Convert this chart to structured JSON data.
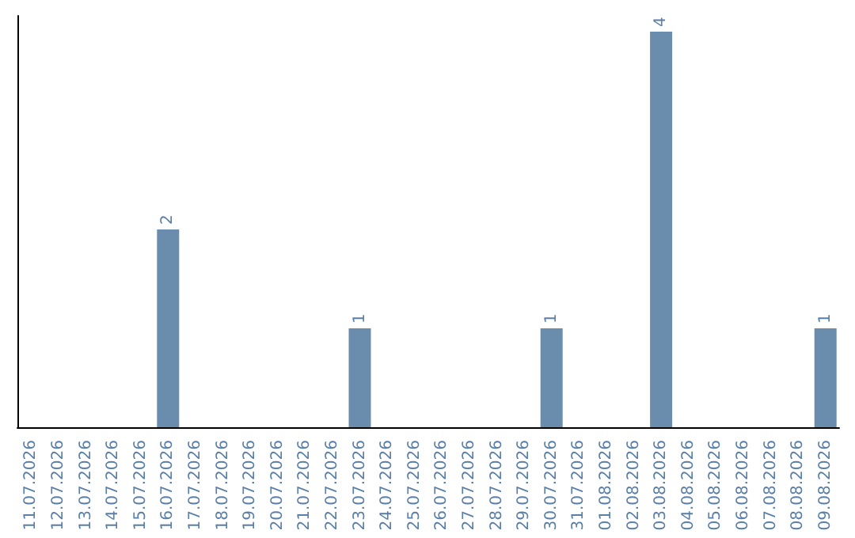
{
  "chart_data": {
    "type": "bar",
    "categories": [
      "11.07.2026",
      "12.07.2026",
      "13.07.2026",
      "14.07.2026",
      "15.07.2026",
      "16.07.2026",
      "17.07.2026",
      "18.07.2026",
      "19.07.2026",
      "20.07.2026",
      "21.07.2026",
      "22.07.2026",
      "23.07.2026",
      "24.07.2026",
      "25.07.2026",
      "26.07.2026",
      "27.07.2026",
      "28.07.2026",
      "29.07.2026",
      "30.07.2026",
      "31.07.2026",
      "01.08.2026",
      "02.08.2026",
      "03.08.2026",
      "04.08.2026",
      "05.08.2026",
      "06.08.2026",
      "07.08.2026",
      "08.08.2026",
      "09.08.2026"
    ],
    "values": [
      0,
      0,
      0,
      0,
      0,
      2,
      0,
      0,
      0,
      0,
      0,
      0,
      1,
      0,
      0,
      0,
      0,
      0,
      0,
      1,
      0,
      0,
      0,
      4,
      0,
      0,
      0,
      0,
      0,
      1
    ],
    "color": "#6a8cad",
    "value_labels": [
      null,
      null,
      null,
      null,
      null,
      "2",
      null,
      null,
      null,
      null,
      null,
      null,
      "1",
      null,
      null,
      null,
      null,
      null,
      null,
      "1",
      null,
      null,
      null,
      "4",
      null,
      null,
      null,
      null,
      null,
      "1"
    ],
    "grid": false,
    "tick_labels": "x"
  }
}
